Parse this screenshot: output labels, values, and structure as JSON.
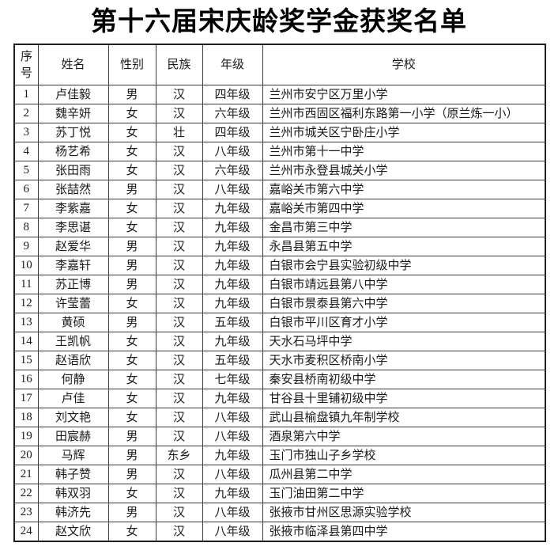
{
  "title": "第十六届宋庆龄奖学金获奖名单",
  "colors": {
    "text": "#1a1a1a",
    "border": "#3a3a3a",
    "background": "#ffffff"
  },
  "table": {
    "headers": [
      "序号",
      "姓名",
      "性别",
      "民族",
      "年级",
      "学校"
    ],
    "rows": [
      [
        "1",
        "卢佳毅",
        "男",
        "汉",
        "四年级",
        "兰州市安宁区万里小学"
      ],
      [
        "2",
        "魏辛妍",
        "女",
        "汉",
        "六年级",
        "兰州市西固区福利东路第一小学（原兰炼一小）"
      ],
      [
        "3",
        "苏丁悦",
        "女",
        "壮",
        "四年级",
        "兰州市城关区宁卧庄小学"
      ],
      [
        "4",
        "杨艺希",
        "女",
        "汉",
        "八年级",
        "兰州市第十一中学"
      ],
      [
        "5",
        "张田雨",
        "女",
        "汉",
        "六年级",
        "兰州市永登县城关小学"
      ],
      [
        "6",
        "张喆然",
        "男",
        "汉",
        "八年级",
        "嘉峪关市第六中学"
      ],
      [
        "7",
        "李紫嘉",
        "女",
        "汉",
        "九年级",
        "嘉峪关市第四中学"
      ],
      [
        "8",
        "李思谌",
        "女",
        "汉",
        "九年级",
        "金昌市第三中学"
      ],
      [
        "9",
        "赵爱华",
        "男",
        "汉",
        "九年级",
        "永昌县第五中学"
      ],
      [
        "10",
        "李嘉轩",
        "男",
        "汉",
        "九年级",
        "白银市会宁县实验初级中学"
      ],
      [
        "11",
        "苏正博",
        "男",
        "汉",
        "九年级",
        "白银市靖远县第八中学"
      ],
      [
        "12",
        "许莹蕾",
        "女",
        "汉",
        "九年级",
        "白银市景泰县第六中学"
      ],
      [
        "13",
        "黄硕",
        "男",
        "汉",
        "五年级",
        "白银市平川区育才小学"
      ],
      [
        "14",
        "王凯帆",
        "女",
        "汉",
        "九年级",
        "天水石马坪中学"
      ],
      [
        "15",
        "赵语欣",
        "女",
        "汉",
        "五年级",
        "天水市麦积区桥南小学"
      ],
      [
        "16",
        "何静",
        "女",
        "汉",
        "七年级",
        "秦安县桥南初级中学"
      ],
      [
        "17",
        "卢佳",
        "女",
        "汉",
        "九年级",
        "甘谷县十里铺初级中学"
      ],
      [
        "18",
        "刘文艳",
        "女",
        "汉",
        "八年级",
        "武山县榆盘镇九年制学校"
      ],
      [
        "19",
        "田宸赫",
        "男",
        "汉",
        "八年级",
        "酒泉第六中学"
      ],
      [
        "20",
        "马辉",
        "男",
        "东乡",
        "九年级",
        "玉门市独山子乡学校"
      ],
      [
        "21",
        "韩子赞",
        "男",
        "汉",
        "八年级",
        "瓜州县第二中学"
      ],
      [
        "22",
        "韩双羽",
        "女",
        "汉",
        "九年级",
        "玉门油田第二中学"
      ],
      [
        "23",
        "韩济先",
        "男",
        "汉",
        "八年级",
        "张掖市甘州区思源实验学校"
      ],
      [
        "24",
        "赵文欣",
        "女",
        "汉",
        "八年级",
        "张掖市临泽县第四中学"
      ]
    ]
  }
}
